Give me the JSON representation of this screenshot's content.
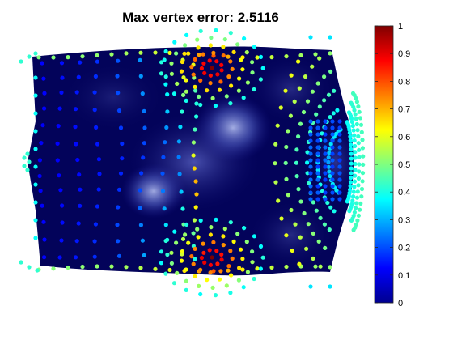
{
  "title": "Max vertex error: 2.5116",
  "chart_data": {
    "type": "scatter",
    "title": "Max vertex error: 2.5116",
    "xlabel": "",
    "ylabel": "",
    "description_free": true,
    "colormap": "jet",
    "colorbar": {
      "range": [
        0,
        1
      ],
      "ticks": [
        "0",
        "0.1",
        "0.2",
        "0.3",
        "0.4",
        "0.5",
        "0.6",
        "0.7",
        "0.8",
        "0.9",
        "1"
      ],
      "placement": "right"
    },
    "axes_visible": false,
    "mesh_color": "#03035a",
    "glow_color": "#b4c3ff",
    "hotspots": [
      {
        "label": "upper",
        "value": 1.0
      },
      {
        "label": "lower",
        "value": 1.0
      }
    ],
    "point_error_range": [
      0,
      1
    ]
  }
}
